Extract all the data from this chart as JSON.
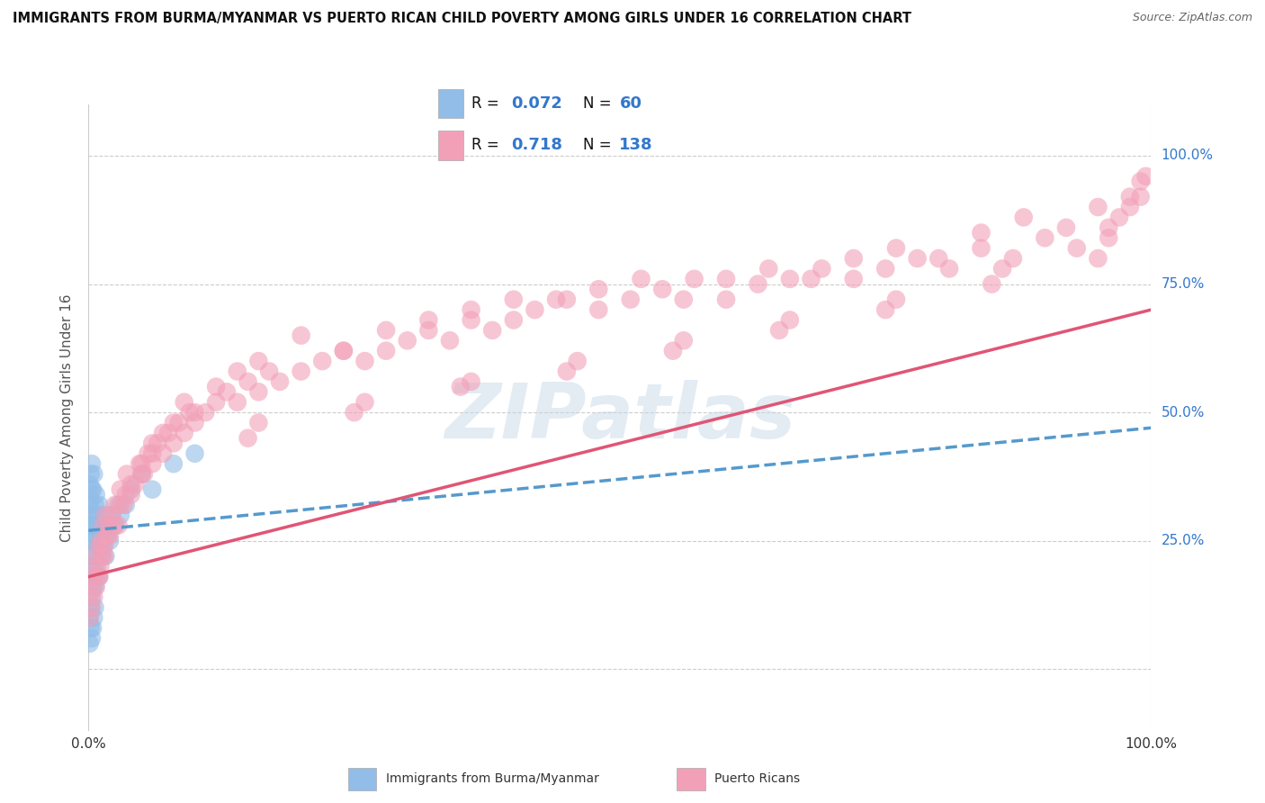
{
  "title": "IMMIGRANTS FROM BURMA/MYANMAR VS PUERTO RICAN CHILD POVERTY AMONG GIRLS UNDER 16 CORRELATION CHART",
  "source": "Source: ZipAtlas.com",
  "ylabel": "Child Poverty Among Girls Under 16",
  "xlim": [
    0.0,
    1.0
  ],
  "ylim": [
    -0.12,
    1.1
  ],
  "y_tick_positions": [
    0.0,
    0.25,
    0.5,
    0.75,
    1.0
  ],
  "y_tick_labels": [
    "",
    "25.0%",
    "50.0%",
    "75.0%",
    "100.0%"
  ],
  "x_tick_positions": [
    0.0,
    1.0
  ],
  "x_tick_labels": [
    "0.0%",
    "100.0%"
  ],
  "legend_R1": "0.072",
  "legend_N1": "60",
  "legend_R2": "0.718",
  "legend_N2": "138",
  "color_blue": "#91BDE8",
  "color_pink": "#F2A0B8",
  "color_blue_line": "#5599CC",
  "color_pink_line": "#E05575",
  "color_text_blue": "#3377CC",
  "watermark_color": "#C8D8E8",
  "background_color": "#FFFFFF",
  "grid_color": "#CCCCCC",
  "series1_x": [
    0.001,
    0.001,
    0.001,
    0.002,
    0.002,
    0.002,
    0.002,
    0.003,
    0.003,
    0.003,
    0.003,
    0.004,
    0.004,
    0.004,
    0.005,
    0.005,
    0.005,
    0.005,
    0.006,
    0.006,
    0.006,
    0.007,
    0.007,
    0.007,
    0.008,
    0.008,
    0.009,
    0.009,
    0.01,
    0.01,
    0.01,
    0.011,
    0.012,
    0.013,
    0.014,
    0.015,
    0.016,
    0.017,
    0.018,
    0.02,
    0.022,
    0.025,
    0.028,
    0.03,
    0.035,
    0.04,
    0.05,
    0.06,
    0.08,
    0.1,
    0.001,
    0.001,
    0.002,
    0.002,
    0.003,
    0.003,
    0.004,
    0.004,
    0.005,
    0.006
  ],
  "series1_y": [
    0.28,
    0.32,
    0.36,
    0.25,
    0.3,
    0.33,
    0.38,
    0.22,
    0.28,
    0.35,
    0.4,
    0.2,
    0.28,
    0.35,
    0.18,
    0.25,
    0.3,
    0.38,
    0.16,
    0.22,
    0.32,
    0.18,
    0.26,
    0.34,
    0.2,
    0.28,
    0.24,
    0.3,
    0.18,
    0.24,
    0.32,
    0.26,
    0.22,
    0.28,
    0.24,
    0.3,
    0.22,
    0.26,
    0.28,
    0.25,
    0.3,
    0.28,
    0.32,
    0.3,
    0.32,
    0.35,
    0.38,
    0.35,
    0.4,
    0.42,
    0.1,
    0.05,
    0.08,
    0.12,
    0.06,
    0.14,
    0.08,
    0.16,
    0.1,
    0.12
  ],
  "series2_x": [
    0.001,
    0.002,
    0.003,
    0.004,
    0.005,
    0.006,
    0.007,
    0.008,
    0.009,
    0.01,
    0.011,
    0.012,
    0.013,
    0.014,
    0.015,
    0.016,
    0.018,
    0.02,
    0.022,
    0.025,
    0.028,
    0.03,
    0.033,
    0.036,
    0.04,
    0.044,
    0.048,
    0.052,
    0.056,
    0.06,
    0.065,
    0.07,
    0.075,
    0.08,
    0.085,
    0.09,
    0.095,
    0.1,
    0.11,
    0.12,
    0.13,
    0.14,
    0.15,
    0.16,
    0.17,
    0.18,
    0.2,
    0.22,
    0.24,
    0.26,
    0.28,
    0.3,
    0.32,
    0.34,
    0.36,
    0.38,
    0.4,
    0.42,
    0.45,
    0.48,
    0.51,
    0.54,
    0.57,
    0.6,
    0.63,
    0.66,
    0.69,
    0.72,
    0.75,
    0.78,
    0.81,
    0.84,
    0.87,
    0.9,
    0.93,
    0.96,
    0.98,
    0.99,
    0.01,
    0.015,
    0.02,
    0.025,
    0.03,
    0.035,
    0.04,
    0.05,
    0.06,
    0.07,
    0.08,
    0.09,
    0.1,
    0.12,
    0.14,
    0.16,
    0.2,
    0.24,
    0.28,
    0.32,
    0.36,
    0.4,
    0.44,
    0.48,
    0.52,
    0.56,
    0.6,
    0.64,
    0.68,
    0.72,
    0.76,
    0.8,
    0.84,
    0.88,
    0.92,
    0.95,
    0.97,
    0.98,
    0.99,
    0.995,
    0.05,
    0.15,
    0.25,
    0.35,
    0.45,
    0.55,
    0.65,
    0.75,
    0.85,
    0.95,
    0.06,
    0.16,
    0.26,
    0.36,
    0.46,
    0.56,
    0.66,
    0.76,
    0.86,
    0.96
  ],
  "series2_y": [
    0.1,
    0.15,
    0.12,
    0.18,
    0.14,
    0.2,
    0.16,
    0.22,
    0.18,
    0.24,
    0.2,
    0.25,
    0.22,
    0.28,
    0.24,
    0.3,
    0.26,
    0.28,
    0.3,
    0.32,
    0.28,
    0.35,
    0.32,
    0.38,
    0.34,
    0.36,
    0.4,
    0.38,
    0.42,
    0.4,
    0.44,
    0.42,
    0.46,
    0.44,
    0.48,
    0.46,
    0.5,
    0.48,
    0.5,
    0.52,
    0.54,
    0.52,
    0.56,
    0.54,
    0.58,
    0.56,
    0.58,
    0.6,
    0.62,
    0.6,
    0.62,
    0.64,
    0.66,
    0.64,
    0.68,
    0.66,
    0.68,
    0.7,
    0.72,
    0.7,
    0.72,
    0.74,
    0.76,
    0.72,
    0.75,
    0.76,
    0.78,
    0.76,
    0.78,
    0.8,
    0.78,
    0.82,
    0.8,
    0.84,
    0.82,
    0.86,
    0.9,
    0.92,
    0.18,
    0.22,
    0.26,
    0.28,
    0.32,
    0.34,
    0.36,
    0.4,
    0.44,
    0.46,
    0.48,
    0.52,
    0.5,
    0.55,
    0.58,
    0.6,
    0.65,
    0.62,
    0.66,
    0.68,
    0.7,
    0.72,
    0.72,
    0.74,
    0.76,
    0.72,
    0.76,
    0.78,
    0.76,
    0.8,
    0.82,
    0.8,
    0.85,
    0.88,
    0.86,
    0.9,
    0.88,
    0.92,
    0.95,
    0.96,
    0.38,
    0.45,
    0.5,
    0.55,
    0.58,
    0.62,
    0.66,
    0.7,
    0.75,
    0.8,
    0.42,
    0.48,
    0.52,
    0.56,
    0.6,
    0.64,
    0.68,
    0.72,
    0.78,
    0.84
  ],
  "trend1_x0": 0.0,
  "trend1_x1": 1.0,
  "trend1_y0": 0.27,
  "trend1_y1": 0.47,
  "trend2_x0": 0.0,
  "trend2_x1": 1.0,
  "trend2_y0": 0.18,
  "trend2_y1": 0.7
}
